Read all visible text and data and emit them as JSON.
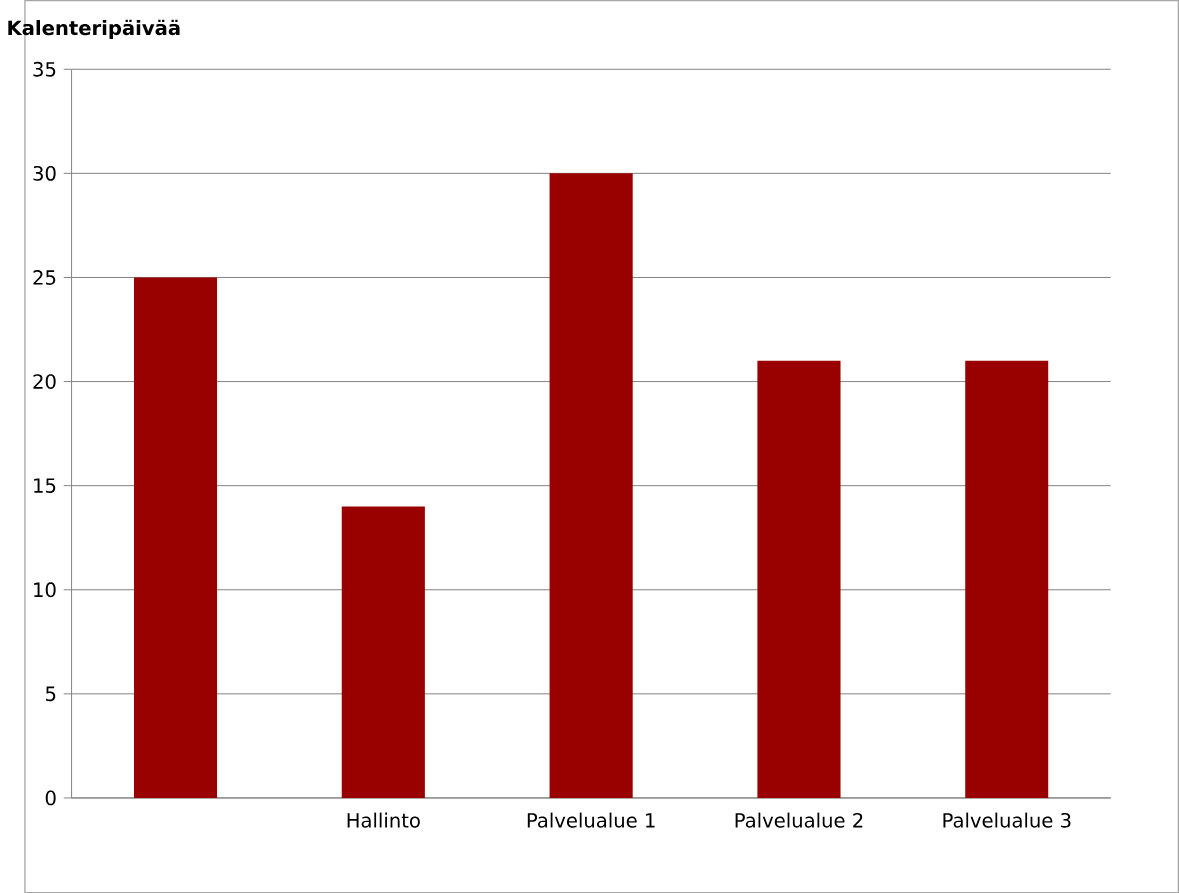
{
  "chart_data": {
    "type": "bar",
    "ylabel": "Kalenteripäivää",
    "categories": [
      null,
      "Hallinto",
      "Palvelualue 1",
      "Palvelualue 2",
      "Palvelualue 3"
    ],
    "values": [
      25,
      14,
      30,
      21,
      21
    ],
    "color": "#990000",
    "ylim": [
      0,
      35
    ],
    "yticks": [
      0,
      5,
      10,
      15,
      20,
      25,
      30,
      35
    ],
    "grid": "y"
  }
}
